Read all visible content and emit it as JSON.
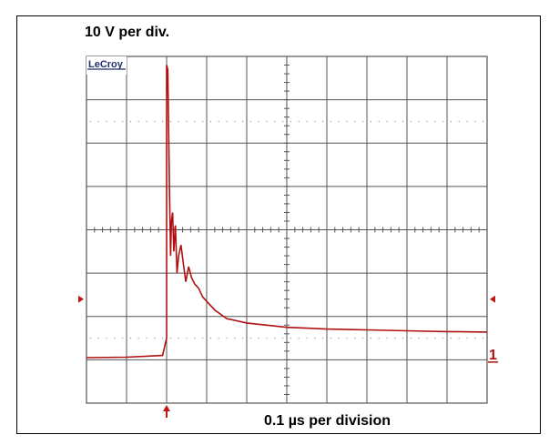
{
  "labels": {
    "voltage_scale": "10 V per div.",
    "time_scale": "0.1 µs per division",
    "brand": "LeCroy",
    "channel": "1"
  },
  "colors": {
    "trace": "#b01010",
    "grid": "#555555",
    "marker": "#c01818"
  },
  "chart_data": {
    "type": "line",
    "title": "",
    "xlabel": "0.1 µs per division",
    "ylabel": "10 V per div.",
    "x_unit": "µs",
    "y_unit": "V",
    "xlim": [
      0,
      1.0
    ],
    "ylim": [
      -40,
      40
    ],
    "grid": true,
    "divisions": {
      "x": 10,
      "y": 8
    },
    "trigger_marker_x": 0.2,
    "ground_level_marker_y": -16,
    "series": [
      {
        "name": "",
        "x": [
          0.0,
          0.1,
          0.19,
          0.2,
          0.2,
          0.203,
          0.207,
          0.21,
          0.212,
          0.215,
          0.218,
          0.222,
          0.226,
          0.23,
          0.236,
          0.242,
          0.248,
          0.255,
          0.262,
          0.27,
          0.28,
          0.29,
          0.3,
          0.32,
          0.35,
          0.4,
          0.45,
          0.5,
          0.55,
          0.6,
          0.7,
          0.8,
          0.9,
          1.0
        ],
        "y": [
          -29.5,
          -29.4,
          -29.0,
          -25.0,
          38.0,
          37.0,
          10.0,
          -6.0,
          2.0,
          4.0,
          -5.0,
          1.0,
          -10.0,
          -6.0,
          -3.5,
          -8.0,
          -12.0,
          -8.5,
          -11.0,
          -12.5,
          -13.5,
          -15.5,
          -16.5,
          -18.5,
          -20.5,
          -21.5,
          -22.0,
          -22.5,
          -22.7,
          -22.9,
          -23.1,
          -23.3,
          -23.5,
          -23.6
        ]
      }
    ]
  }
}
